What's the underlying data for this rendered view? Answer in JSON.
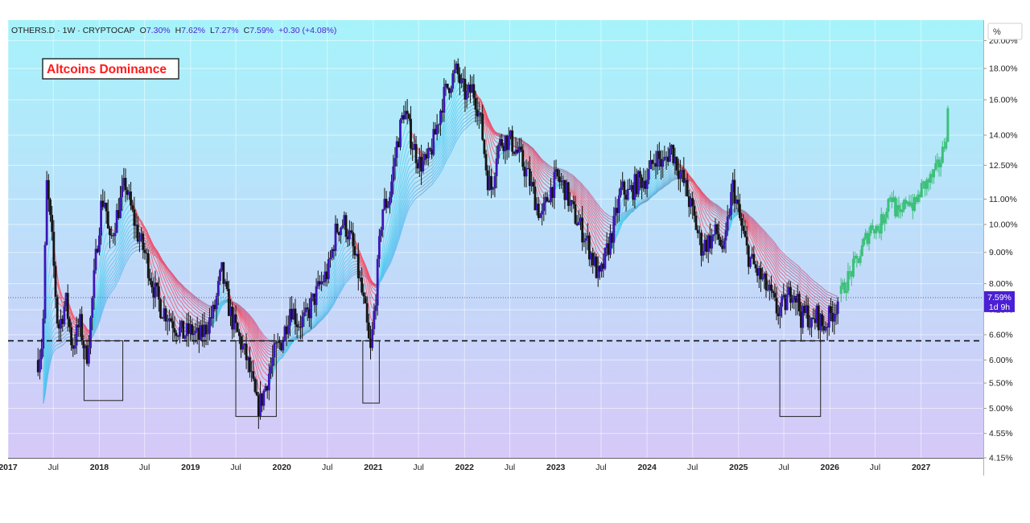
{
  "header": {
    "symbol": "OTHERS.D",
    "interval": "1W",
    "exchange": "CRYPTOCAP",
    "open_label": "O",
    "open": "7.30%",
    "high_label": "H",
    "high": "7.62%",
    "low_label": "L",
    "low": "7.27%",
    "close_label": "C",
    "close": "7.59%",
    "change": "+0.30 (+4.08%)"
  },
  "annotation": {
    "title": "Altcoins Dominance"
  },
  "scale_unit": "%",
  "price_tag": {
    "value": "7.59%",
    "countdown": "1d 9h"
  },
  "colors": {
    "bg_top": "#a6f3fb",
    "bg_bottom": "#d6c8f8",
    "candle_body": "#3b16b8",
    "candle_wick": "#141414",
    "projection": "#3cc07a",
    "tag": "#4b1fd3",
    "ribbon_bull": "#4fd6f0",
    "ribbon_bear": "#ff4f5e",
    "ribbon_flat": "#8a8a8a",
    "ribbon_base": "#6c5ce7"
  },
  "chart_data": {
    "type": "candlestick",
    "title": "OTHERS.D · 1W · CRYPTOCAP",
    "y_scale": "log",
    "ylim": [
      4.15,
      21.6
    ],
    "y_ticks": [
      "20.00%",
      "18.00%",
      "16.00%",
      "14.00%",
      "12.50%",
      "11.00%",
      "10.00%",
      "9.00%",
      "8.00%",
      "7.25%",
      "6.60%",
      "6.00%",
      "5.50%",
      "5.00%",
      "4.55%",
      "4.15%"
    ],
    "y_tick_values": [
      20.0,
      18.0,
      16.0,
      14.0,
      12.5,
      11.0,
      10.0,
      9.0,
      8.0,
      7.25,
      6.6,
      6.0,
      5.5,
      5.0,
      4.55,
      4.15
    ],
    "xlim": [
      "2017-01-01",
      "2027-09-07"
    ],
    "x_ticks": [
      {
        "label": "2017",
        "date": "2017-01-01",
        "major": true
      },
      {
        "label": "Jul",
        "date": "2017-07-01",
        "major": false
      },
      {
        "label": "2018",
        "date": "2018-01-01",
        "major": true
      },
      {
        "label": "Jul",
        "date": "2018-07-01",
        "major": false
      },
      {
        "label": "2019",
        "date": "2019-01-01",
        "major": true
      },
      {
        "label": "Jul",
        "date": "2019-07-01",
        "major": false
      },
      {
        "label": "2020",
        "date": "2020-01-01",
        "major": true
      },
      {
        "label": "Jul",
        "date": "2020-07-01",
        "major": false
      },
      {
        "label": "2021",
        "date": "2021-01-01",
        "major": true
      },
      {
        "label": "Jul",
        "date": "2021-07-01",
        "major": false
      },
      {
        "label": "2022",
        "date": "2022-01-01",
        "major": true
      },
      {
        "label": "Jul",
        "date": "2022-07-01",
        "major": false
      },
      {
        "label": "2023",
        "date": "2023-01-01",
        "major": true
      },
      {
        "label": "Jul",
        "date": "2023-07-01",
        "major": false
      },
      {
        "label": "2024",
        "date": "2024-01-01",
        "major": true
      },
      {
        "label": "Jul",
        "date": "2024-07-01",
        "major": false
      },
      {
        "label": "2025",
        "date": "2025-01-01",
        "major": true
      },
      {
        "label": "Jul",
        "date": "2025-07-01",
        "major": false
      },
      {
        "label": "2026",
        "date": "2026-01-01",
        "major": true
      },
      {
        "label": "Jul",
        "date": "2026-07-01",
        "major": false
      },
      {
        "label": "2027",
        "date": "2027-01-01",
        "major": true
      }
    ],
    "price_path": [
      [
        "2017-05-01",
        6.0
      ],
      [
        "2017-05-20",
        6.5
      ],
      [
        "2017-06-05",
        11.6
      ],
      [
        "2017-06-25",
        9.5
      ],
      [
        "2017-07-20",
        6.7
      ],
      [
        "2017-08-20",
        7.5
      ],
      [
        "2017-09-15",
        6.3
      ],
      [
        "2017-10-15",
        6.9
      ],
      [
        "2017-11-10",
        6.0
      ],
      [
        "2017-11-25",
        6.8
      ],
      [
        "2017-12-20",
        9.0
      ],
      [
        "2018-01-10",
        10.9
      ],
      [
        "2018-01-25",
        11.0
      ],
      [
        "2018-02-10",
        9.2
      ],
      [
        "2018-03-05",
        10.1
      ],
      [
        "2018-04-15",
        11.7
      ],
      [
        "2018-05-05",
        10.7
      ],
      [
        "2018-06-05",
        9.6
      ],
      [
        "2018-07-05",
        8.9
      ],
      [
        "2018-08-05",
        7.9
      ],
      [
        "2018-09-05",
        7.3
      ],
      [
        "2018-10-05",
        7.1
      ],
      [
        "2018-11-05",
        6.8
      ],
      [
        "2018-12-05",
        6.6
      ],
      [
        "2019-01-05",
        6.7
      ],
      [
        "2019-02-05",
        6.5
      ],
      [
        "2019-03-05",
        6.8
      ],
      [
        "2019-04-05",
        7.2
      ],
      [
        "2019-05-05",
        8.4
      ],
      [
        "2019-05-25",
        7.6
      ],
      [
        "2019-06-15",
        7.0
      ],
      [
        "2019-07-15",
        6.5
      ],
      [
        "2019-08-15",
        6.0
      ],
      [
        "2019-09-05",
        5.5
      ],
      [
        "2019-09-25",
        5.0
      ],
      [
        "2019-10-15",
        5.2
      ],
      [
        "2019-11-05",
        5.6
      ],
      [
        "2019-12-05",
        6.2
      ],
      [
        "2020-01-05",
        6.5
      ],
      [
        "2020-02-05",
        7.4
      ],
      [
        "2020-03-05",
        6.9
      ],
      [
        "2020-04-05",
        7.0
      ],
      [
        "2020-05-05",
        7.5
      ],
      [
        "2020-06-05",
        8.0
      ],
      [
        "2020-07-05",
        8.4
      ],
      [
        "2020-08-05",
        9.8
      ],
      [
        "2020-09-05",
        10.1
      ],
      [
        "2020-10-05",
        9.4
      ],
      [
        "2020-11-05",
        8.2
      ],
      [
        "2020-12-01",
        7.1
      ],
      [
        "2020-12-20",
        6.1
      ],
      [
        "2021-01-10",
        7.6
      ],
      [
        "2021-02-05",
        10.6
      ],
      [
        "2021-03-05",
        11.0
      ],
      [
        "2021-04-05",
        13.5
      ],
      [
        "2021-05-05",
        15.5
      ],
      [
        "2021-06-05",
        13.6
      ],
      [
        "2021-07-05",
        12.6
      ],
      [
        "2021-08-05",
        12.6
      ],
      [
        "2021-09-05",
        14.0
      ],
      [
        "2021-10-05",
        16.0
      ],
      [
        "2021-11-05",
        17.2
      ],
      [
        "2021-12-01",
        17.8
      ],
      [
        "2021-12-20",
        16.8
      ],
      [
        "2022-01-10",
        16.2
      ],
      [
        "2022-02-01",
        16.7
      ],
      [
        "2022-02-20",
        15.8
      ],
      [
        "2022-03-10",
        14.4
      ],
      [
        "2022-04-01",
        12.0
      ],
      [
        "2022-04-20",
        11.4
      ],
      [
        "2022-05-10",
        13.3
      ],
      [
        "2022-06-05",
        13.8
      ],
      [
        "2022-07-05",
        13.7
      ],
      [
        "2022-08-05",
        13.0
      ],
      [
        "2022-09-05",
        12.2
      ],
      [
        "2022-10-05",
        11.2
      ],
      [
        "2022-11-05",
        10.2
      ],
      [
        "2022-12-05",
        11.3
      ],
      [
        "2023-01-05",
        11.9
      ],
      [
        "2023-02-05",
        11.5
      ],
      [
        "2023-03-05",
        10.6
      ],
      [
        "2023-04-05",
        10.0
      ],
      [
        "2023-05-05",
        9.4
      ],
      [
        "2023-06-05",
        8.6
      ],
      [
        "2023-06-25",
        8.1
      ],
      [
        "2023-07-20",
        8.9
      ],
      [
        "2023-08-20",
        9.9
      ],
      [
        "2023-09-20",
        11.4
      ],
      [
        "2023-10-20",
        11.2
      ],
      [
        "2023-11-20",
        11.7
      ],
      [
        "2024-01-05",
        12.0
      ],
      [
        "2024-02-05",
        13.0
      ],
      [
        "2024-03-05",
        12.5
      ],
      [
        "2024-04-05",
        13.4
      ],
      [
        "2024-05-05",
        12.4
      ],
      [
        "2024-06-05",
        11.4
      ],
      [
        "2024-07-05",
        10.3
      ],
      [
        "2024-08-05",
        9.2
      ],
      [
        "2024-09-05",
        9.4
      ],
      [
        "2024-10-05",
        9.7
      ],
      [
        "2024-11-05",
        9.0
      ],
      [
        "2024-11-25",
        10.6
      ],
      [
        "2024-12-10",
        11.6
      ],
      [
        "2025-01-05",
        10.2
      ],
      [
        "2025-02-05",
        9.0
      ],
      [
        "2025-03-05",
        8.5
      ],
      [
        "2025-04-05",
        8.1
      ],
      [
        "2025-05-05",
        7.7
      ],
      [
        "2025-06-05",
        7.2
      ],
      [
        "2025-07-05",
        7.4
      ],
      [
        "2025-08-05",
        7.9
      ],
      [
        "2025-08-25",
        7.5
      ],
      [
        "2025-09-10",
        7.0
      ],
      [
        "2025-10-01",
        7.2
      ],
      [
        "2025-10-20",
        6.8
      ],
      [
        "2025-11-10",
        7.1
      ],
      [
        "2025-12-05",
        6.8
      ],
      [
        "2025-12-25",
        7.0
      ],
      [
        "2026-01-20",
        7.3
      ],
      [
        "2026-02-05",
        7.59
      ]
    ],
    "projection_path": [
      [
        "2026-02-15",
        7.7
      ],
      [
        "2026-03-10",
        8.1
      ],
      [
        "2026-04-05",
        8.5
      ],
      [
        "2026-05-01",
        8.9
      ],
      [
        "2026-05-25",
        9.5
      ],
      [
        "2026-06-20",
        10.0
      ],
      [
        "2026-07-15",
        9.8
      ],
      [
        "2026-08-10",
        10.5
      ],
      [
        "2026-09-01",
        11.3
      ],
      [
        "2026-09-20",
        10.6
      ],
      [
        "2026-10-10",
        10.2
      ],
      [
        "2026-11-05",
        11.1
      ],
      [
        "2026-12-05",
        10.7
      ],
      [
        "2027-01-05",
        11.5
      ],
      [
        "2027-02-05",
        11.8
      ],
      [
        "2027-03-01",
        12.2
      ],
      [
        "2027-03-25",
        12.9
      ],
      [
        "2027-04-10",
        14.0
      ],
      [
        "2027-04-20",
        15.6
      ]
    ],
    "current_price": 7.59,
    "support_level": 6.45,
    "boxes": [
      {
        "x0": "2017-11-01",
        "x1": "2018-04-05",
        "y0": 5.15,
        "y1": 6.45
      },
      {
        "x0": "2019-07-01",
        "x1": "2019-12-10",
        "y0": 4.85,
        "y1": 6.45
      },
      {
        "x0": "2020-11-20",
        "x1": "2021-01-25",
        "y0": 5.1,
        "y1": 6.45
      },
      {
        "x0": "2025-06-15",
        "x1": "2025-11-25",
        "y0": 4.85,
        "y1": 6.45
      }
    ],
    "ribbon": {
      "lines": 14,
      "min_period": 6,
      "max_period": 48
    }
  }
}
